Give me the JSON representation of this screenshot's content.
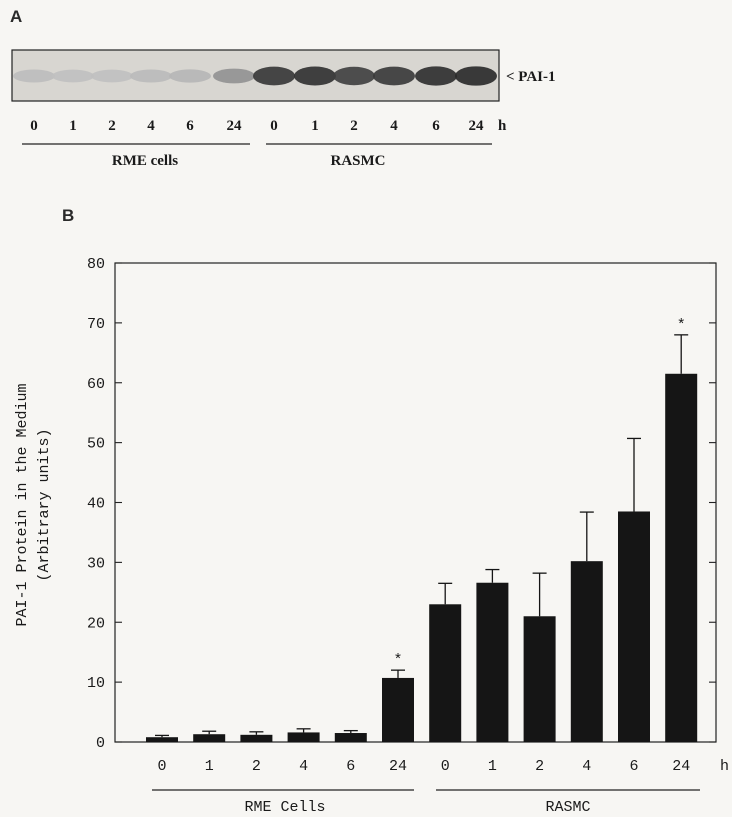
{
  "panel_a": {
    "letter": "A",
    "band_label": "< PAI-1",
    "lanes": [
      "0",
      "1",
      "2",
      "4",
      "6",
      "24"
    ],
    "unit": "h",
    "groups": [
      {
        "label": "RME cells",
        "band_intensity": [
          0.12,
          0.1,
          0.1,
          0.13,
          0.15,
          0.35
        ]
      },
      {
        "label": "RASMC",
        "band_intensity": [
          0.85,
          0.88,
          0.8,
          0.84,
          0.9,
          0.92
        ]
      }
    ]
  },
  "chart_data": {
    "type": "bar",
    "panel_letter": "B",
    "ylabel_line1": "PAI-1 Protein in the Medium",
    "ylabel_line2": "(Arbitrary units)",
    "xunit": "h",
    "ylim": [
      0,
      80
    ],
    "yticks": [
      "0",
      "10",
      "20",
      "30",
      "40",
      "50",
      "60",
      "70",
      "80"
    ],
    "categories": [
      "0",
      "1",
      "2",
      "4",
      "6",
      "24",
      "0",
      "1",
      "2",
      "4",
      "6",
      "24"
    ],
    "values": [
      0.8,
      1.3,
      1.2,
      1.6,
      1.5,
      10.7,
      23.0,
      26.6,
      21.0,
      30.2,
      38.5,
      61.5
    ],
    "errors": [
      0.3,
      0.5,
      0.5,
      0.6,
      0.4,
      1.3,
      3.5,
      2.2,
      7.2,
      8.2,
      12.2,
      6.5
    ],
    "significance": [
      "",
      "",
      "",
      "",
      "",
      "*",
      "",
      "",
      "",
      "",
      "",
      "*"
    ],
    "groups": [
      {
        "label": "RME Cells",
        "start": 0,
        "end": 5
      },
      {
        "label": "RASMC",
        "start": 6,
        "end": 11
      }
    ],
    "bar_color": "#151515",
    "grid": false
  }
}
